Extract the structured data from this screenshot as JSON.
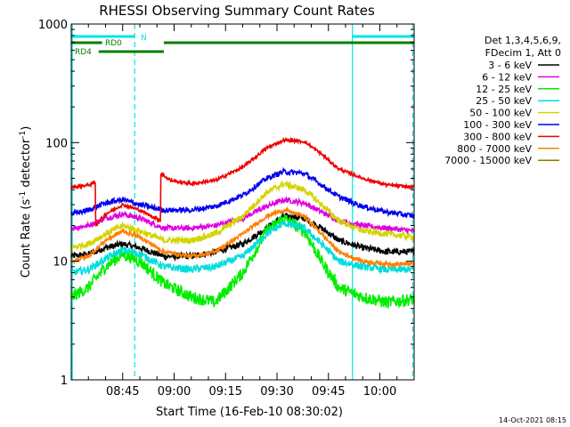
{
  "chart_data": {
    "type": "line",
    "title": "RHESSI Observing Summary Count Rates",
    "xlabel": "Start Time (16-Feb-10 08:30:02)",
    "ylabel_main": "Count Rate (s",
    "ylabel_sup1": "-1",
    "ylabel_mid": " detector",
    "ylabel_sup2": "-1",
    "ylabel_end": ")",
    "yscale": "log",
    "ylim": [
      1,
      1000
    ],
    "xlim_minutes": [
      0,
      100
    ],
    "x_ticks": [
      {
        "t": 15,
        "label": "08:45"
      },
      {
        "t": 30,
        "label": "09:00"
      },
      {
        "t": 45,
        "label": "09:15"
      },
      {
        "t": 60,
        "label": "09:30"
      },
      {
        "t": 75,
        "label": "09:45"
      },
      {
        "t": 90,
        "label": "10:00"
      }
    ],
    "y_ticks": [
      {
        "v": 1,
        "label": "1"
      },
      {
        "v": 10,
        "label": "10"
      },
      {
        "v": 100,
        "label": "100"
      },
      {
        "v": 1000,
        "label": "1000"
      }
    ],
    "legend_header": [
      "Det 1,3,4,5,6,9,",
      "FDecim 1, Att 0"
    ],
    "flags": [
      {
        "label": "N",
        "color": "#00e5e5",
        "segments": [
          [
            0,
            18.5
          ],
          [
            82,
            100
          ]
        ]
      },
      {
        "label": "RD0",
        "color": "#007f00",
        "segments": [
          [
            0,
            9
          ],
          [
            27,
            100
          ]
        ]
      },
      {
        "label": "RD4",
        "color": "#007f00",
        "segments": [
          [
            8,
            27
          ]
        ]
      }
    ],
    "vlines": [
      {
        "t": 0.3,
        "style": "solid",
        "color": "#00e5e5"
      },
      {
        "t": 18.5,
        "style": "dashed",
        "color": "#00e5e5"
      },
      {
        "t": 82,
        "style": "solid",
        "color": "#00e5e5"
      },
      {
        "t": 99.6,
        "style": "dashed",
        "color": "#00e5e5"
      }
    ],
    "series": [
      {
        "name": "3 - 6 keV",
        "color": "#000000",
        "noise": 0.06,
        "points": [
          [
            0,
            11
          ],
          [
            5,
            11.5
          ],
          [
            10,
            13
          ],
          [
            15,
            14
          ],
          [
            20,
            13
          ],
          [
            27,
            11
          ],
          [
            35,
            11
          ],
          [
            42,
            12
          ],
          [
            50,
            14
          ],
          [
            57,
            19
          ],
          [
            62,
            24
          ],
          [
            68,
            23
          ],
          [
            73,
            19
          ],
          [
            78,
            15
          ],
          [
            85,
            13
          ],
          [
            92,
            12
          ],
          [
            100,
            12
          ]
        ]
      },
      {
        "name": "6 - 12 keV",
        "color": "#e000e0",
        "noise": 0.05,
        "points": [
          [
            0,
            19
          ],
          [
            5,
            20
          ],
          [
            10,
            23
          ],
          [
            15,
            25
          ],
          [
            20,
            23
          ],
          [
            27,
            19
          ],
          [
            35,
            19
          ],
          [
            42,
            20
          ],
          [
            50,
            23
          ],
          [
            57,
            29
          ],
          [
            62,
            33
          ],
          [
            68,
            31
          ],
          [
            73,
            26
          ],
          [
            78,
            22
          ],
          [
            85,
            20
          ],
          [
            92,
            19
          ],
          [
            100,
            18
          ]
        ]
      },
      {
        "name": "12 - 25 keV",
        "color": "#00ee00",
        "noise": 0.12,
        "points": [
          [
            0,
            5
          ],
          [
            5,
            6
          ],
          [
            10,
            9
          ],
          [
            15,
            11.5
          ],
          [
            20,
            10
          ],
          [
            27,
            6.5
          ],
          [
            35,
            5
          ],
          [
            42,
            4.5
          ],
          [
            50,
            8
          ],
          [
            57,
            18
          ],
          [
            62,
            23
          ],
          [
            68,
            18
          ],
          [
            73,
            10
          ],
          [
            78,
            6
          ],
          [
            85,
            5
          ],
          [
            92,
            4.5
          ],
          [
            100,
            4.8
          ]
        ]
      },
      {
        "name": "25 - 50 keV",
        "color": "#00dddd",
        "noise": 0.07,
        "points": [
          [
            0,
            8
          ],
          [
            5,
            8.5
          ],
          [
            10,
            10.5
          ],
          [
            15,
            12.5
          ],
          [
            20,
            11.5
          ],
          [
            27,
            9
          ],
          [
            35,
            8.5
          ],
          [
            42,
            9
          ],
          [
            50,
            11
          ],
          [
            57,
            17
          ],
          [
            62,
            21
          ],
          [
            68,
            19
          ],
          [
            73,
            14
          ],
          [
            78,
            10
          ],
          [
            85,
            9
          ],
          [
            92,
            8.5
          ],
          [
            100,
            8.5
          ]
        ]
      },
      {
        "name": "50 - 100 keV",
        "color": "#d4d400",
        "noise": 0.06,
        "points": [
          [
            0,
            13
          ],
          [
            5,
            14
          ],
          [
            10,
            17
          ],
          [
            15,
            20
          ],
          [
            20,
            18
          ],
          [
            27,
            15
          ],
          [
            35,
            15
          ],
          [
            42,
            17
          ],
          [
            50,
            24
          ],
          [
            57,
            38
          ],
          [
            62,
            45
          ],
          [
            68,
            40
          ],
          [
            73,
            30
          ],
          [
            78,
            22
          ],
          [
            85,
            18
          ],
          [
            92,
            17
          ],
          [
            100,
            16
          ]
        ]
      },
      {
        "name": "100 - 300 keV",
        "color": "#0000ee",
        "noise": 0.05,
        "points": [
          [
            0,
            25
          ],
          [
            5,
            27
          ],
          [
            10,
            31
          ],
          [
            15,
            33
          ],
          [
            20,
            30
          ],
          [
            27,
            27
          ],
          [
            35,
            27
          ],
          [
            42,
            29
          ],
          [
            50,
            36
          ],
          [
            57,
            50
          ],
          [
            62,
            57
          ],
          [
            68,
            55
          ],
          [
            73,
            44
          ],
          [
            78,
            35
          ],
          [
            85,
            29
          ],
          [
            92,
            26
          ],
          [
            100,
            24
          ]
        ]
      },
      {
        "name": "300 - 800 keV",
        "color": "#ee0000",
        "noise": 0.03,
        "points": [
          [
            0,
            42
          ],
          [
            5,
            44
          ],
          [
            7,
            46
          ],
          [
            7.1,
            20
          ],
          [
            10,
            25
          ],
          [
            15,
            30
          ],
          [
            20,
            27
          ],
          [
            26,
            22
          ],
          [
            26.1,
            55
          ],
          [
            29,
            48
          ],
          [
            35,
            45
          ],
          [
            42,
            48
          ],
          [
            50,
            62
          ],
          [
            57,
            90
          ],
          [
            62,
            105
          ],
          [
            68,
            102
          ],
          [
            73,
            80
          ],
          [
            78,
            60
          ],
          [
            85,
            50
          ],
          [
            92,
            44
          ],
          [
            100,
            42
          ]
        ]
      },
      {
        "name": "800 - 7000 keV",
        "color": "#ff7f00",
        "noise": 0.04,
        "points": [
          [
            0,
            10
          ],
          [
            5,
            11
          ],
          [
            10,
            15
          ],
          [
            15,
            18
          ],
          [
            20,
            16
          ],
          [
            27,
            12
          ],
          [
            35,
            11
          ],
          [
            42,
            12
          ],
          [
            50,
            17
          ],
          [
            57,
            24
          ],
          [
            62,
            27
          ],
          [
            68,
            24
          ],
          [
            73,
            17
          ],
          [
            78,
            12
          ],
          [
            85,
            10
          ],
          [
            92,
            9.5
          ],
          [
            100,
            9.5
          ]
        ]
      },
      {
        "name": "7000 - 15000 keV",
        "color": "#8b7a00",
        "noise": 0.0,
        "points": []
      }
    ]
  },
  "footer": {
    "timestamp": "14-Oct-2021 08:15"
  }
}
